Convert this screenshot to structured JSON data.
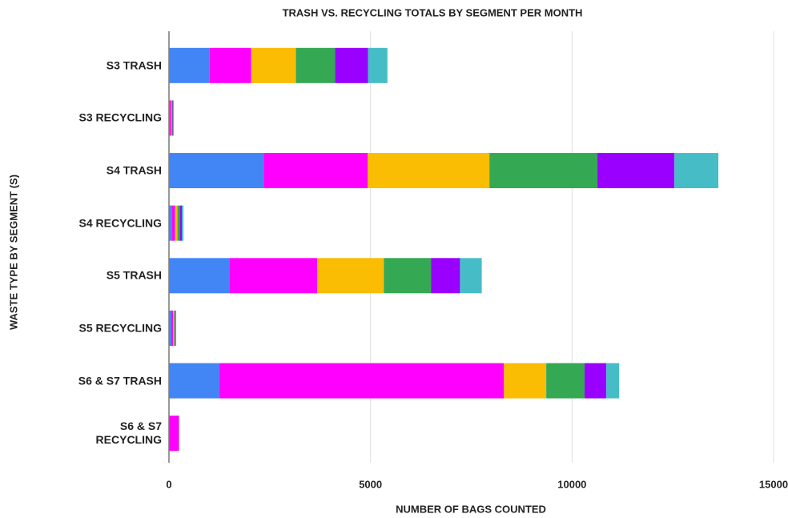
{
  "chart_data": {
    "type": "bar",
    "orientation": "horizontal",
    "stacked": true,
    "title": "TRASH VS. RECYCLING TOTALS BY SEGMENT PER MONTH",
    "x_label": "NUMBER OF BAGS COUNTED",
    "y_label": "WASTE TYPE BY SEGMENT (S)",
    "categories": [
      "S3 TRASH",
      "S3 RECYCLING",
      "S4 TRASH",
      "S4 RECYCLING",
      "S5 TRASH",
      "S5 RECYCLING",
      "S6 & S7 TRASH",
      "S6 & S7 RECYCLING"
    ],
    "series": [
      {
        "color": "#4285f4",
        "values": [
          1010,
          20,
          2350,
          80,
          1510,
          60,
          1250,
          10
        ]
      },
      {
        "color": "#ff00ff",
        "values": [
          1030,
          30,
          2580,
          70,
          2170,
          40,
          7060,
          230
        ]
      },
      {
        "color": "#fbbc04",
        "values": [
          1110,
          20,
          3020,
          60,
          1650,
          30,
          1050,
          5
        ]
      },
      {
        "color": "#34a853",
        "values": [
          970,
          20,
          2680,
          60,
          1170,
          20,
          950,
          5
        ]
      },
      {
        "color": "#9900ff",
        "values": [
          820,
          15,
          1910,
          50,
          720,
          15,
          540,
          5
        ]
      },
      {
        "color": "#46bdc6",
        "values": [
          480,
          15,
          1090,
          40,
          540,
          15,
          320,
          5
        ]
      }
    ],
    "xlim": [
      0,
      15000
    ],
    "xticks": [
      0,
      5000,
      10000,
      15000
    ],
    "grid": true
  }
}
